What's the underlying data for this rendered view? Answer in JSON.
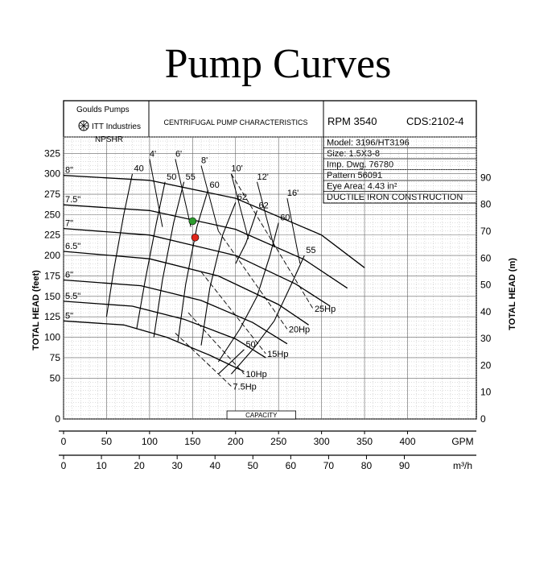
{
  "page": {
    "title": "Pump Curves"
  },
  "header": {
    "company": "Goulds Pumps",
    "logo_text": "ITT Industries",
    "center_title": "CENTRIFUGAL PUMP CHARACTERISTICS",
    "rpm_label": "RPM  3540",
    "cds": "CDS:2102-4",
    "info_lines": [
      "Model: 3196/HT3196",
      "Size: 1.5X3-8",
      "Imp. Dwg. 76780",
      "Pattern 56091",
      "Eye Area:  4.43 in²",
      "DUCTILE IRON CONSTRUCTION"
    ]
  },
  "chart_data": {
    "type": "line",
    "title": "CENTRIFUGAL PUMP CHARACTERISTICS",
    "xlabel": "GPM",
    "x2label": "m³/h",
    "ylabel": "TOTAL HEAD (feet)",
    "y2label": "TOTAL HEAD (m)",
    "xlim": [
      0,
      480
    ],
    "ylim": [
      0,
      345
    ],
    "grid": true,
    "x_ticks": [
      0,
      50,
      100,
      150,
      200,
      250,
      300,
      350,
      400
    ],
    "x_tick_labels": [
      "0",
      "50",
      "100",
      "150",
      "200",
      "250",
      "300",
      "350",
      "400"
    ],
    "y_ticks": [
      0,
      50,
      75,
      100,
      125,
      150,
      175,
      200,
      225,
      250,
      275,
      300,
      325
    ],
    "y_tick_labels": [
      "0",
      "50",
      "75",
      "100",
      "125",
      "150",
      "175",
      "200",
      "225",
      "250",
      "275",
      "300",
      "325"
    ],
    "m3h_ticks": [
      0,
      10,
      20,
      30,
      40,
      50,
      60,
      70,
      80,
      90
    ],
    "m3h_tick_labels": [
      "0",
      "10",
      "20",
      "30",
      "40",
      "50",
      "60",
      "70",
      "80",
      "90"
    ],
    "meter_ticks": [
      0,
      10,
      20,
      30,
      40,
      50,
      60,
      70,
      80,
      90
    ],
    "meter_tick_labels": [
      "0",
      "10",
      "20",
      "30",
      "40",
      "50",
      "60",
      "70",
      "80",
      "90"
    ],
    "capacity_label": "CAPACITY",
    "npsh_label": "NPSHR",
    "impeller_curves": [
      {
        "name": "8\"",
        "x": [
          0,
          100,
          200,
          300,
          350
        ],
        "y": [
          298,
          292,
          270,
          225,
          185
        ]
      },
      {
        "name": "7.5\"",
        "x": [
          0,
          100,
          200,
          280,
          330
        ],
        "y": [
          262,
          255,
          232,
          195,
          160
        ]
      },
      {
        "name": "7\"",
        "x": [
          0,
          100,
          200,
          270,
          310
        ],
        "y": [
          233,
          225,
          200,
          165,
          138
        ]
      },
      {
        "name": "6.5\"",
        "x": [
          0,
          100,
          180,
          250,
          285
        ],
        "y": [
          205,
          196,
          175,
          140,
          115
        ]
      },
      {
        "name": "6\"",
        "x": [
          0,
          90,
          160,
          220,
          260
        ],
        "y": [
          170,
          163,
          145,
          118,
          92
        ]
      },
      {
        "name": "5.5\"",
        "x": [
          0,
          80,
          140,
          200,
          235
        ],
        "y": [
          144,
          138,
          122,
          98,
          75
        ]
      },
      {
        "name": "5\"",
        "x": [
          0,
          70,
          120,
          170,
          210
        ],
        "y": [
          120,
          115,
          100,
          78,
          58
        ]
      }
    ],
    "efficiency_contours": [
      {
        "name": "40",
        "x": [
          80,
          70,
          58,
          50
        ],
        "y": [
          300,
          250,
          180,
          125
        ]
      },
      {
        "name": "50",
        "x": [
          118,
          108,
          95,
          85
        ],
        "y": [
          290,
          240,
          170,
          110
        ]
      },
      {
        "name": "55",
        "x": [
          140,
          128,
          115,
          105
        ],
        "y": [
          290,
          240,
          170,
          100
        ]
      },
      {
        "name": "60",
        "x": [
          168,
          155,
          142,
          133
        ],
        "y": [
          280,
          235,
          165,
          95
        ]
      },
      {
        "name": "62",
        "x": [
          200,
          185,
          170,
          160
        ],
        "y": [
          265,
          225,
          160,
          90
        ]
      },
      {
        "name": "62",
        "x": [
          225,
          212,
          200
        ],
        "y": [
          255,
          215,
          190
        ]
      },
      {
        "name": "60",
        "x": [
          250,
          240,
          225,
          205,
          180
        ],
        "y": [
          240,
          200,
          150,
          110,
          70
        ]
      },
      {
        "name": "55",
        "x": [
          280,
          265,
          245,
          220,
          195
        ],
        "y": [
          200,
          165,
          120,
          85,
          55
        ]
      },
      {
        "name": "50",
        "x": [
          210,
          195,
          180
        ],
        "y": [
          85,
          70,
          55
        ]
      }
    ],
    "horsepower_lines": [
      {
        "name": "25Hp",
        "x": [
          195,
          290
        ],
        "y": [
          300,
          135
        ]
      },
      {
        "name": "20Hp",
        "x": [
          180,
          260
        ],
        "y": [
          230,
          110
        ]
      },
      {
        "name": "15Hp",
        "x": [
          160,
          235
        ],
        "y": [
          180,
          80
        ]
      },
      {
        "name": "10Hp",
        "x": [
          145,
          210
        ],
        "y": [
          130,
          55
        ]
      },
      {
        "name": "7.5Hp",
        "x": [
          130,
          195
        ],
        "y": [
          105,
          40
        ]
      }
    ],
    "npsh_curves": [
      {
        "name": "4'",
        "x": [
          100,
          115
        ],
        "y": [
          318,
          235
        ]
      },
      {
        "name": "6'",
        "x": [
          130,
          148
        ],
        "y": [
          318,
          235
        ]
      },
      {
        "name": "8'",
        "x": [
          160,
          180
        ],
        "y": [
          310,
          230
        ]
      },
      {
        "name": "10'",
        "x": [
          195,
          215
        ],
        "y": [
          300,
          220
        ]
      },
      {
        "name": "12'",
        "x": [
          225,
          245
        ],
        "y": [
          290,
          210
        ]
      },
      {
        "name": "16'",
        "x": [
          260,
          275
        ],
        "y": [
          270,
          190
        ]
      }
    ],
    "operating_points": [
      {
        "name": "green",
        "x": 150,
        "y": 242,
        "color": "#2e9b2e"
      },
      {
        "name": "red",
        "x": 153,
        "y": 222,
        "color": "#e0261b"
      }
    ]
  }
}
